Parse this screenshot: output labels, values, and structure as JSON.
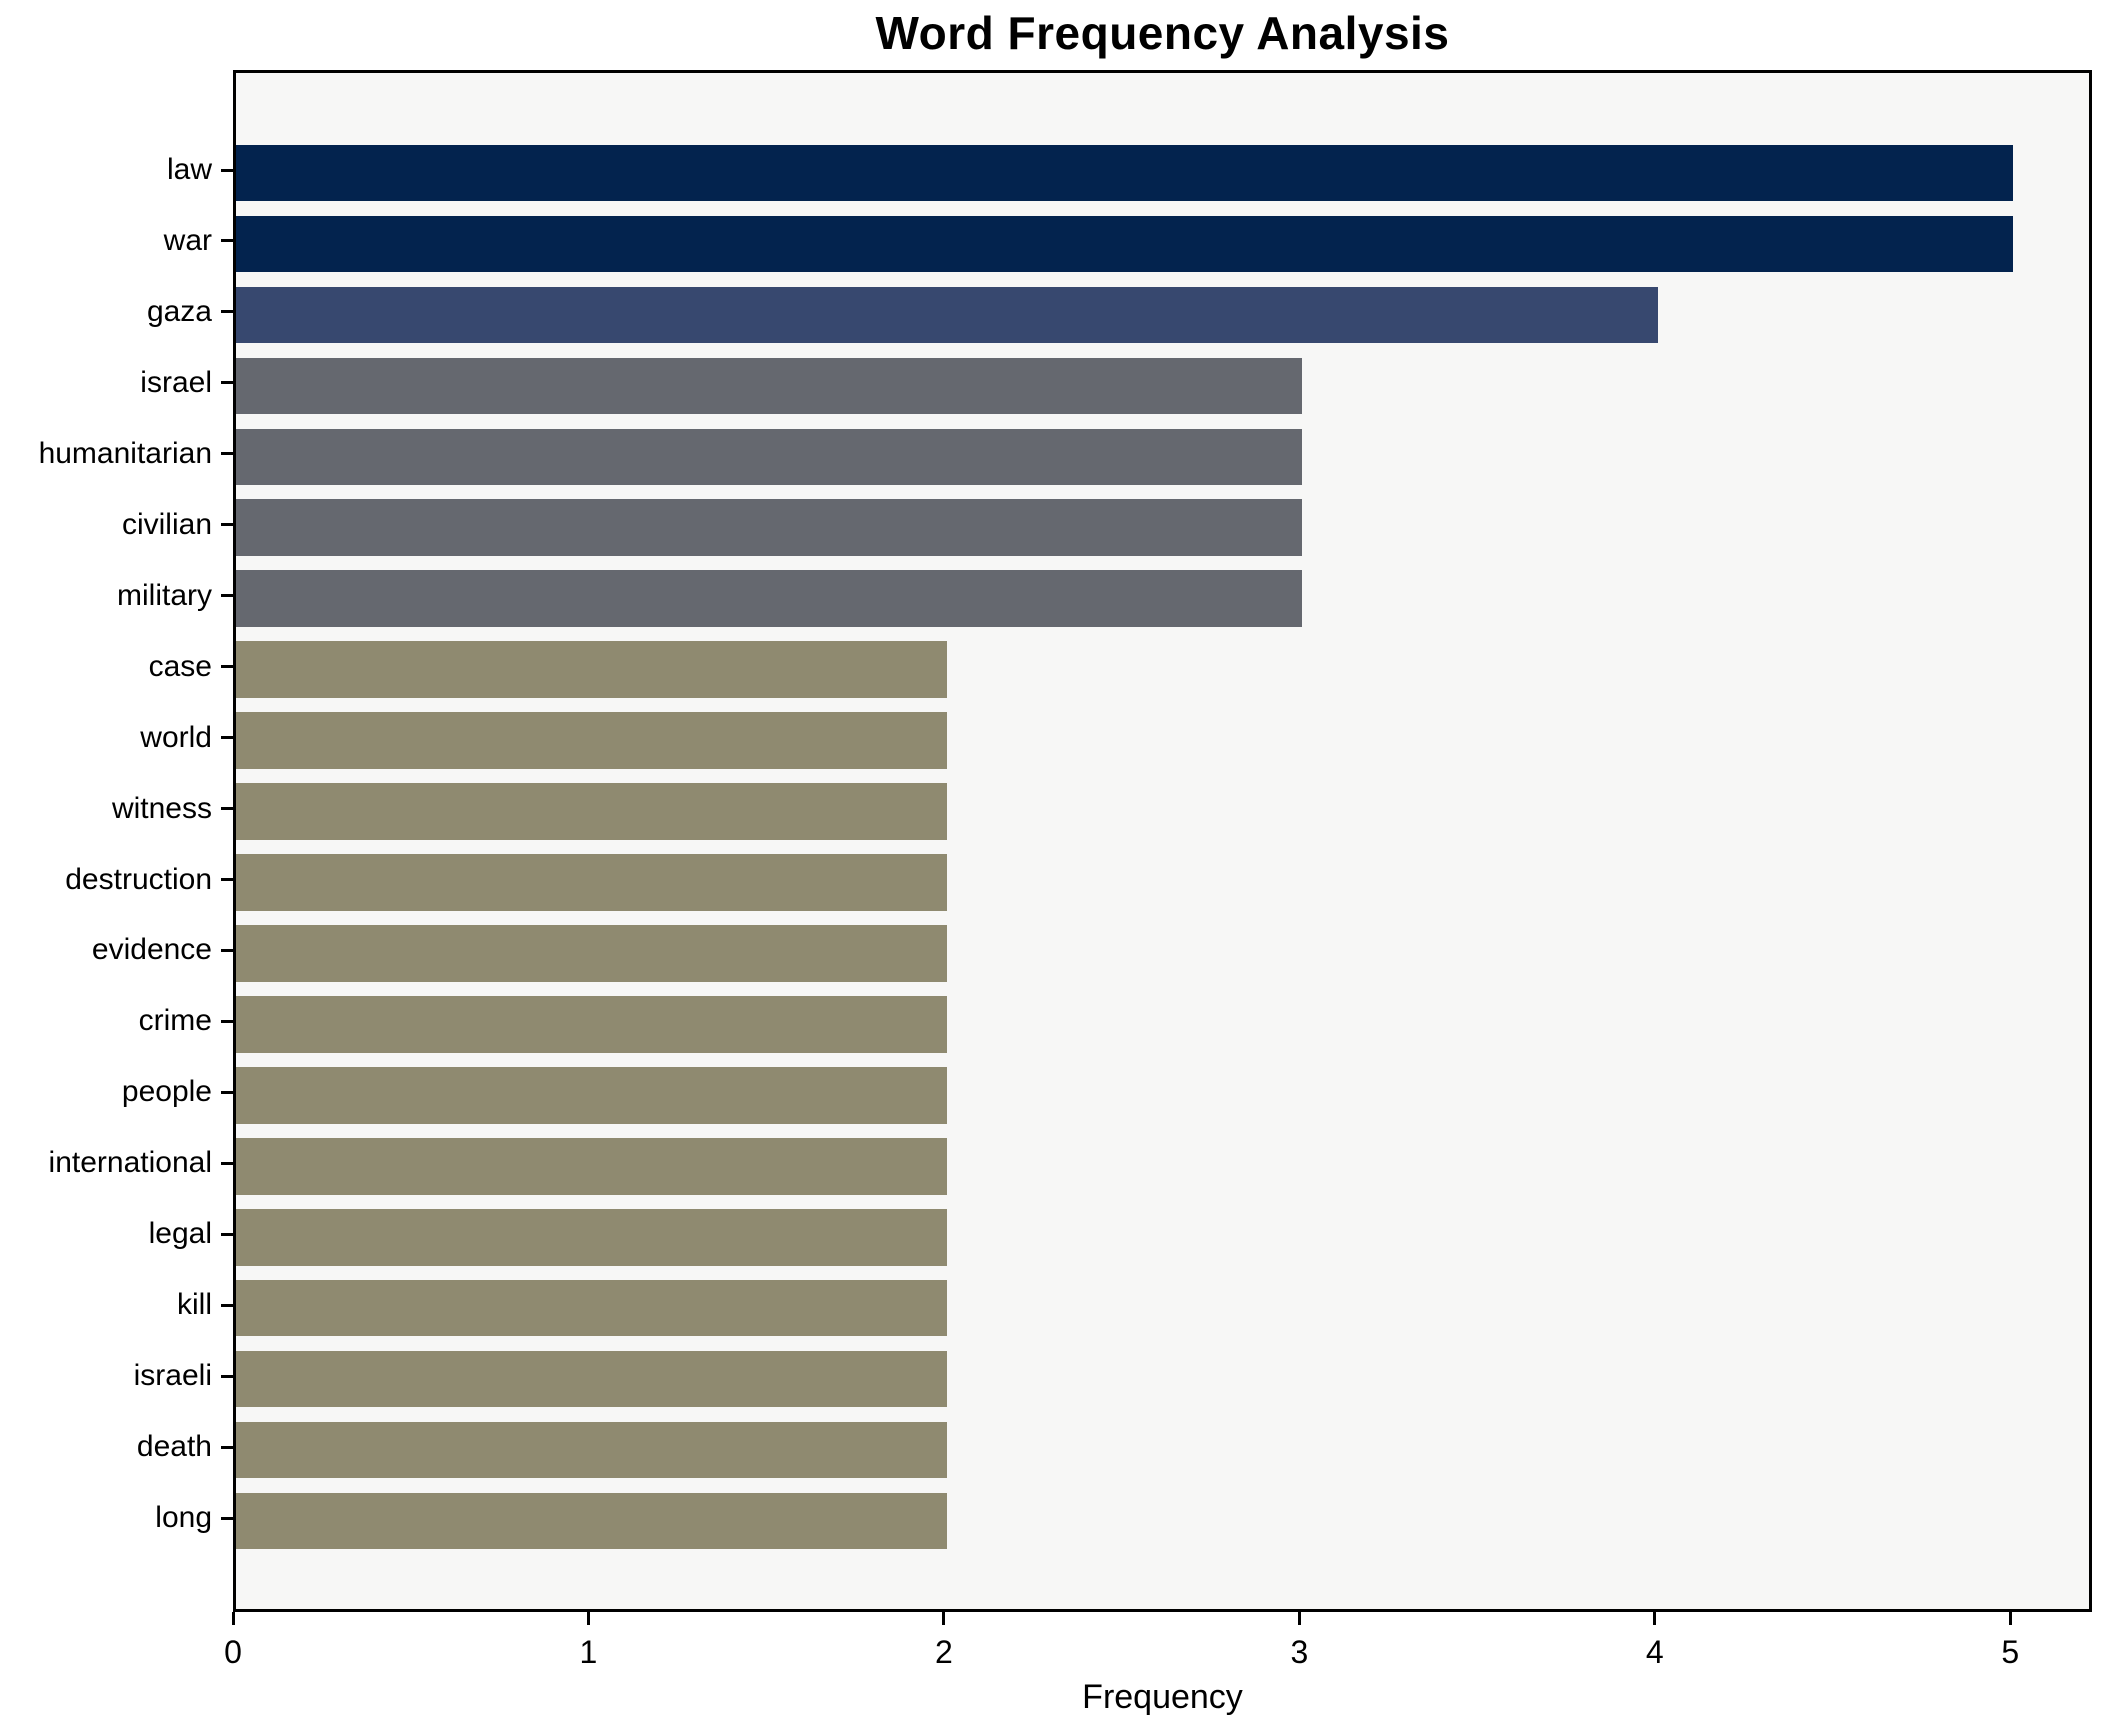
{
  "chart_data": {
    "type": "bar",
    "orientation": "horizontal",
    "title": "Word Frequency Analysis",
    "xlabel": "Frequency",
    "ylabel": "",
    "categories": [
      "law",
      "war",
      "gaza",
      "israel",
      "humanitarian",
      "civilian",
      "military",
      "case",
      "world",
      "witness",
      "destruction",
      "evidence",
      "crime",
      "people",
      "international",
      "legal",
      "kill",
      "israeli",
      "death",
      "long"
    ],
    "values": [
      5,
      5,
      4,
      3,
      3,
      3,
      3,
      2,
      2,
      2,
      2,
      2,
      2,
      2,
      2,
      2,
      2,
      2,
      2,
      2
    ],
    "bar_colors": [
      "#03234e",
      "#03234e",
      "#37486f",
      "#65686f",
      "#65686f",
      "#65686f",
      "#65686f",
      "#8f8a70",
      "#8f8a70",
      "#8f8a70",
      "#8f8a70",
      "#8f8a70",
      "#8f8a70",
      "#8f8a70",
      "#8f8a70",
      "#8f8a70",
      "#8f8a70",
      "#8f8a70",
      "#8f8a70",
      "#8f8a70"
    ],
    "xlim": [
      0,
      5.23
    ],
    "xticks": [
      0,
      1,
      2,
      3,
      4,
      5
    ],
    "xtick_labels": [
      "0",
      "1",
      "2",
      "3",
      "4",
      "5"
    ],
    "grid": false,
    "legend": false,
    "colors": {
      "freq5": "#03234e",
      "freq4": "#37486f",
      "freq3": "#65686f",
      "freq2": "#8f8a70",
      "plot_background": "#f7f7f6",
      "figure_background": "#ffffff",
      "spine": "#000000"
    }
  }
}
